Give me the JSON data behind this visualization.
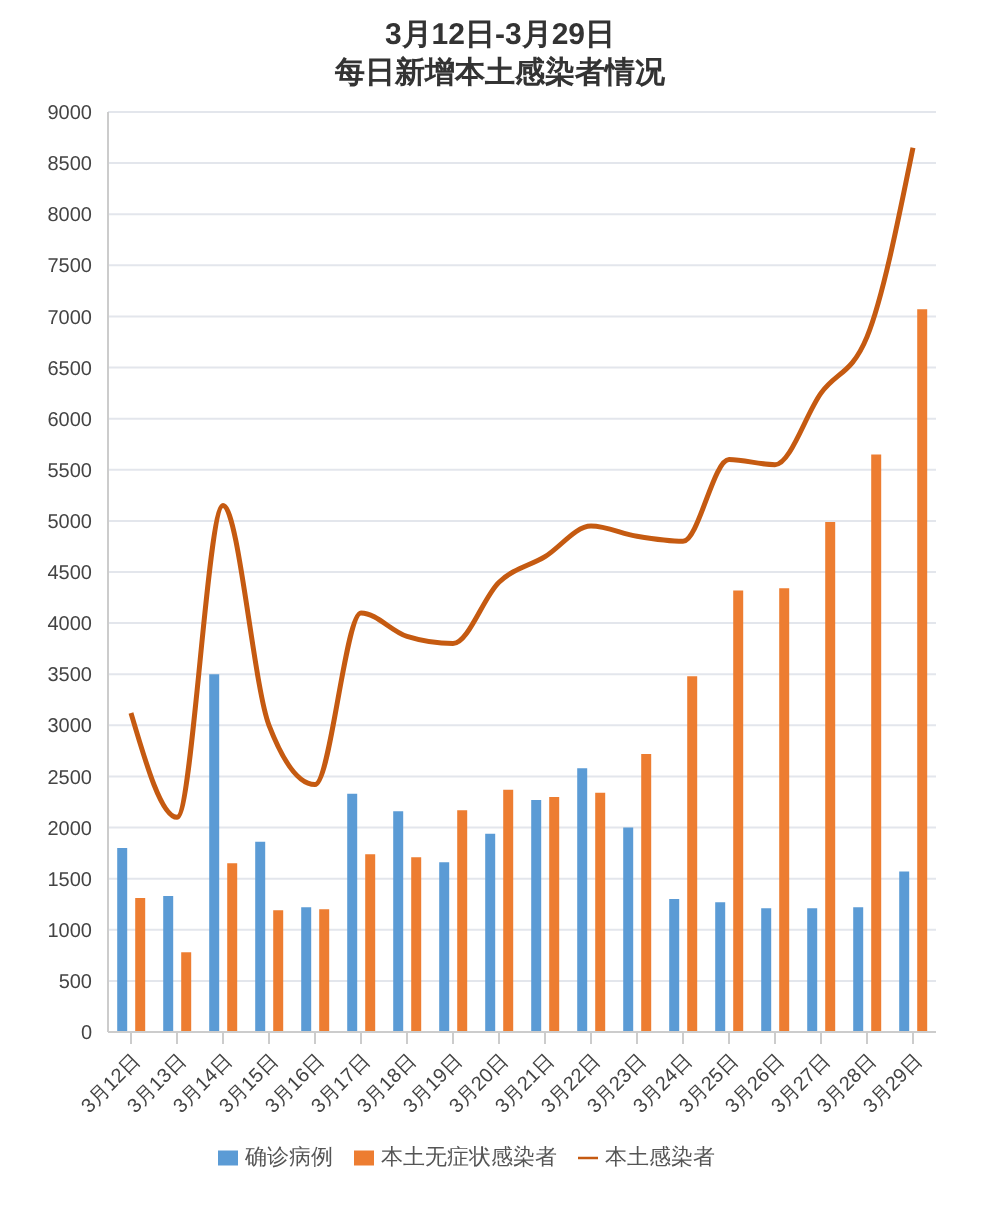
{
  "chart_data": {
    "type": "bar",
    "title": "3月12日-3月29日",
    "subtitle": "每日新增本土感染者情况",
    "categories": [
      "3月12日",
      "3月13日",
      "3月14日",
      "3月15日",
      "3月16日",
      "3月17日",
      "3月18日",
      "3月19日",
      "3月20日",
      "3月21日",
      "3月22日",
      "3月23日",
      "3月24日",
      "3月25日",
      "3月26日",
      "3月27日",
      "3月28日",
      "3月29日"
    ],
    "series": [
      {
        "name": "确诊病例",
        "color": "#5b9bd5",
        "values": [
          1800,
          1330,
          3500,
          1860,
          1220,
          2330,
          2160,
          1660,
          1940,
          2270,
          2580,
          2000,
          1300,
          1270,
          1210,
          1210,
          1220,
          1570
        ]
      },
      {
        "name": "本土无症状感染者",
        "color": "#ed7d31",
        "values": [
          1310,
          780,
          1650,
          1190,
          1200,
          1740,
          1710,
          2170,
          2370,
          2300,
          2340,
          2720,
          3480,
          4320,
          4340,
          4990,
          5650,
          7070
        ]
      },
      {
        "name": "本土感染者",
        "type": "line",
        "color": "#c55a11",
        "values": [
          3120,
          2100,
          5150,
          3000,
          2420,
          4100,
          3870,
          3800,
          4400,
          4650,
          4950,
          4850,
          4800,
          5600,
          5550,
          6250,
          6800,
          8650
        ]
      }
    ],
    "ylim": [
      0,
      9000
    ],
    "yticks": [
      0,
      500,
      1000,
      1500,
      2000,
      2500,
      3000,
      3500,
      4000,
      4500,
      5000,
      5500,
      6000,
      6500,
      7000,
      7500,
      8000,
      8500,
      9000
    ],
    "grid": "y",
    "legend": "bottom",
    "marker": "none"
  }
}
